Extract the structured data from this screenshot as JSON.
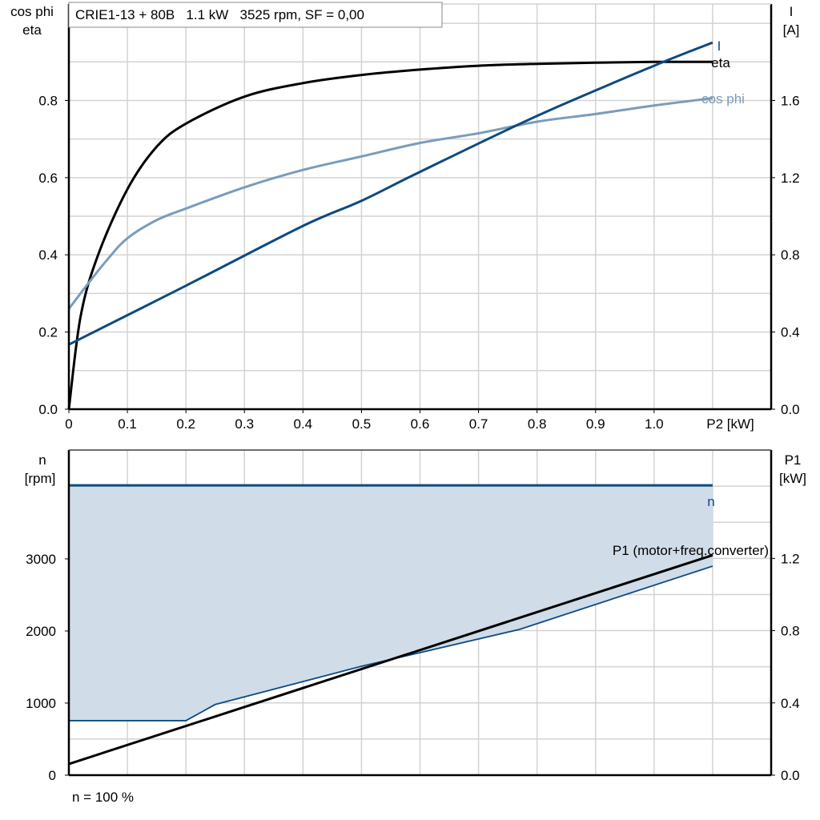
{
  "colors": {
    "eta": "#000000",
    "cos_phi": "#7a9cbb",
    "current": "#0d4a80",
    "speed": "#0d4a80",
    "speed_fill": "#d0dce8",
    "p1": "#000000",
    "grid": "#d3d3d3"
  },
  "chart_data": [
    {
      "type": "line",
      "title": "CRIE1-13 + 80B   1.1 kW   3525 rpm, SF = 0,00",
      "xlabel": "P2 [kW]",
      "ylabel_left": [
        "cos phi",
        "eta"
      ],
      "ylabel_right": [
        "I",
        "[A]"
      ],
      "xlim": [
        0,
        1.2
      ],
      "ylim_left": [
        0,
        1.05
      ],
      "ylim_right": [
        0,
        2.1
      ],
      "xticks": [
        0,
        0.1,
        0.2,
        0.3,
        0.4,
        0.5,
        0.6,
        0.7,
        0.8,
        0.9,
        1.0
      ],
      "xtick_labels": [
        "0",
        "0.1",
        "0.2",
        "0.3",
        "0.4",
        "0.5",
        "0.6",
        "0.7",
        "0.8",
        "0.9",
        "1.0"
      ],
      "yticks_left": [
        0,
        0.2,
        0.4,
        0.6,
        0.8
      ],
      "ytick_labels_left": [
        "0.0",
        "0.2",
        "0.4",
        "0.6",
        "0.8"
      ],
      "yticks_right": [
        0,
        0.4,
        0.8,
        1.2,
        1.6
      ],
      "ytick_labels_right": [
        "0.0",
        "0.4",
        "0.8",
        "1.2",
        "1.6"
      ],
      "grid": true,
      "series": [
        {
          "name": "eta",
          "axis": "left",
          "x": [
            0,
            0.02,
            0.05,
            0.1,
            0.15,
            0.2,
            0.3,
            0.4,
            0.5,
            0.6,
            0.7,
            0.8,
            0.9,
            1.0,
            1.1
          ],
          "y": [
            0,
            0.24,
            0.4,
            0.57,
            0.68,
            0.74,
            0.81,
            0.845,
            0.866,
            0.88,
            0.89,
            0.895,
            0.898,
            0.9,
            0.9
          ]
        },
        {
          "name": "cos phi",
          "axis": "left",
          "x": [
            0,
            0.03,
            0.067,
            0.1,
            0.15,
            0.2,
            0.3,
            0.4,
            0.5,
            0.6,
            0.7,
            0.8,
            0.9,
            1.0,
            1.1
          ],
          "y": [
            0.26,
            0.32,
            0.39,
            0.443,
            0.49,
            0.52,
            0.575,
            0.62,
            0.655,
            0.69,
            0.715,
            0.745,
            0.765,
            0.787,
            0.806
          ]
        },
        {
          "name": "I",
          "axis": "right",
          "x": [
            0,
            0.2,
            0.4,
            0.5,
            0.6,
            0.8,
            1.0,
            1.1
          ],
          "y": [
            0.335,
            0.64,
            0.95,
            1.08,
            1.23,
            1.52,
            1.78,
            1.9
          ]
        }
      ]
    },
    {
      "type": "area",
      "ylabel_left": [
        "n",
        "[rpm]"
      ],
      "ylabel_right": [
        "P1",
        "[kW]"
      ],
      "xlim": [
        0,
        1.2
      ],
      "ylim_left": [
        0,
        4510
      ],
      "ylim_right": [
        0,
        1.8
      ],
      "yticks_left": [
        0,
        1000,
        2000,
        3000
      ],
      "ytick_labels_left": [
        "0",
        "1000",
        "2000",
        "3000"
      ],
      "yticks_right": [
        0,
        0.4,
        0.8,
        1.2
      ],
      "ytick_labels_right": [
        "0.0",
        "0.4",
        "0.8",
        "1.2"
      ],
      "grid": true,
      "speed_max": {
        "name": "n",
        "x": [
          0,
          1.1
        ],
        "y": [
          4020,
          4020
        ]
      },
      "speed_min": {
        "x": [
          0,
          0.2,
          0.25,
          0.5,
          0.6,
          0.77,
          1.1
        ],
        "y": [
          756,
          756,
          980,
          1511,
          1700,
          2022,
          2900
        ]
      },
      "p1": {
        "name": "P1 (motor+freq.converter)",
        "x": [
          0,
          1.1
        ],
        "y": [
          0.062,
          1.218
        ]
      },
      "footnote": "n = 100 %"
    }
  ]
}
